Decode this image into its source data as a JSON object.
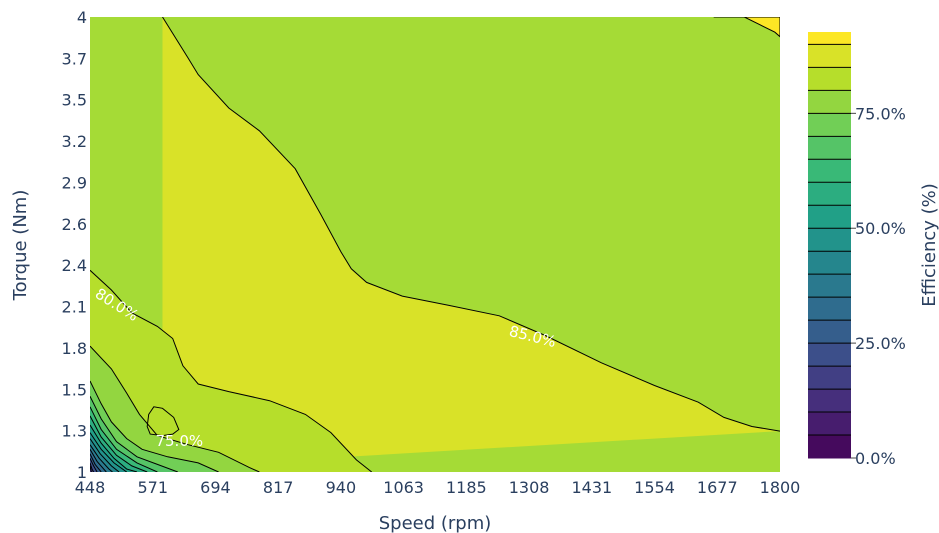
{
  "chart_data": {
    "type": "contour",
    "xlabel": "Speed (rpm)",
    "ylabel": "Torque (Nm)",
    "colorbar_title": "Efficiency (%)",
    "x_ticks": [
      "448",
      "571",
      "694",
      "817",
      "940",
      "1063",
      "1185",
      "1308",
      "1431",
      "1554",
      "1677",
      "1800"
    ],
    "y_ticks": [
      "1",
      "1.3",
      "1.5",
      "1.8",
      "2.1",
      "2.4",
      "2.6",
      "2.9",
      "3.2",
      "3.5",
      "3.7",
      "4"
    ],
    "xlim": [
      448,
      1800
    ],
    "ylim": [
      1,
      4
    ],
    "colorbar_ticks": [
      "0.0%",
      "25.0%",
      "50.0%",
      "75.0%"
    ],
    "colorscale": "viridis",
    "contour_step": 5,
    "contour_labels": [
      {
        "text": "80.0%",
        "x": 500,
        "y": 2.1
      },
      {
        "text": "85.0%",
        "x": 1315,
        "y": 1.89
      },
      {
        "text": "75.0%",
        "x": 623,
        "y": 1.2
      }
    ],
    "contours": [
      {
        "level": 95,
        "points": [
          [
            1670,
            4.0
          ],
          [
            1725,
            4.0
          ],
          [
            1800,
            4.0
          ],
          [
            1800,
            3.87
          ],
          [
            1790,
            3.9
          ],
          [
            1760,
            3.95
          ],
          [
            1730,
            4.0
          ]
        ],
        "closed": true
      },
      {
        "level": 90,
        "points": [
          [
            590,
            4.0
          ],
          [
            640,
            3.73
          ],
          [
            660,
            3.62
          ],
          [
            720,
            3.4
          ],
          [
            780,
            3.25
          ],
          [
            850,
            3.0
          ],
          [
            900,
            2.7
          ],
          [
            940,
            2.45
          ],
          [
            960,
            2.34
          ],
          [
            990,
            2.25
          ],
          [
            1060,
            2.16
          ],
          [
            1150,
            2.1
          ],
          [
            1250,
            2.03
          ],
          [
            1340,
            1.9
          ],
          [
            1450,
            1.72
          ],
          [
            1554,
            1.57
          ],
          [
            1640,
            1.46
          ],
          [
            1690,
            1.36
          ],
          [
            1745,
            1.3
          ],
          [
            1800,
            1.27
          ]
        ],
        "closed": false
      },
      {
        "level": 85,
        "points": [
          [
            448,
            2.33
          ],
          [
            490,
            2.2
          ],
          [
            530,
            2.05
          ],
          [
            580,
            1.96
          ],
          [
            610,
            1.88
          ],
          [
            620,
            1.79
          ],
          [
            630,
            1.7
          ],
          [
            660,
            1.58
          ],
          [
            720,
            1.53
          ],
          [
            800,
            1.47
          ],
          [
            870,
            1.38
          ],
          [
            920,
            1.26
          ],
          [
            970,
            1.08
          ],
          [
            1000,
            1.0
          ]
        ],
        "closed": false
      },
      {
        "level": 80,
        "points": [
          [
            448,
            1.83
          ],
          [
            490,
            1.68
          ],
          [
            520,
            1.52
          ],
          [
            545,
            1.38
          ],
          [
            580,
            1.24
          ],
          [
            640,
            1.18
          ],
          [
            700,
            1.13
          ],
          [
            760,
            1.03
          ],
          [
            780,
            1.0
          ]
        ],
        "closed": false
      },
      {
        "level": 80,
        "points": [
          [
            560,
            1.3
          ],
          [
            563,
            1.38
          ],
          [
            573,
            1.43
          ],
          [
            590,
            1.42
          ],
          [
            612,
            1.36
          ],
          [
            622,
            1.28
          ],
          [
            610,
            1.25
          ],
          [
            590,
            1.24
          ],
          [
            566,
            1.25
          ]
        ],
        "closed": true
      },
      {
        "level": 75,
        "points": [
          [
            448,
            1.6
          ],
          [
            470,
            1.45
          ],
          [
            490,
            1.33
          ],
          [
            520,
            1.22
          ],
          [
            550,
            1.15
          ],
          [
            600,
            1.1
          ],
          [
            660,
            1.06
          ],
          [
            700,
            1.0
          ]
        ],
        "closed": false
      },
      {
        "level": 70,
        "points": [
          [
            448,
            1.5
          ],
          [
            470,
            1.35
          ],
          [
            500,
            1.2
          ],
          [
            540,
            1.1
          ],
          [
            580,
            1.05
          ],
          [
            620,
            1.0
          ]
        ],
        "closed": false
      },
      {
        "level": 65,
        "points": [
          [
            448,
            1.43
          ],
          [
            470,
            1.28
          ],
          [
            500,
            1.15
          ],
          [
            540,
            1.06
          ],
          [
            580,
            1.0
          ]
        ],
        "closed": false
      },
      {
        "level": 60,
        "points": [
          [
            448,
            1.37
          ],
          [
            470,
            1.23
          ],
          [
            500,
            1.11
          ],
          [
            530,
            1.04
          ],
          [
            560,
            1.0
          ]
        ],
        "closed": false
      },
      {
        "level": 55,
        "points": [
          [
            448,
            1.31
          ],
          [
            470,
            1.19
          ],
          [
            495,
            1.09
          ],
          [
            520,
            1.02
          ],
          [
            540,
            1.0
          ]
        ],
        "closed": false
      },
      {
        "level": 50,
        "points": [
          [
            448,
            1.26
          ],
          [
            470,
            1.15
          ],
          [
            495,
            1.06
          ],
          [
            520,
            1.0
          ]
        ],
        "closed": false
      },
      {
        "level": 45,
        "points": [
          [
            448,
            1.22
          ],
          [
            468,
            1.12
          ],
          [
            490,
            1.04
          ],
          [
            505,
            1.0
          ]
        ],
        "closed": false
      },
      {
        "level": 40,
        "points": [
          [
            448,
            1.18
          ],
          [
            466,
            1.09
          ],
          [
            485,
            1.02
          ],
          [
            492,
            1.0
          ]
        ],
        "closed": false
      },
      {
        "level": 35,
        "points": [
          [
            448,
            1.15
          ],
          [
            462,
            1.07
          ],
          [
            480,
            1.0
          ]
        ],
        "closed": false
      },
      {
        "level": 30,
        "points": [
          [
            448,
            1.12
          ],
          [
            458,
            1.05
          ],
          [
            470,
            1.0
          ]
        ],
        "closed": false
      },
      {
        "level": 25,
        "points": [
          [
            448,
            1.09
          ],
          [
            455,
            1.04
          ],
          [
            462,
            1.0
          ]
        ],
        "closed": false
      },
      {
        "level": 20,
        "points": [
          [
            448,
            1.06
          ],
          [
            452,
            1.02
          ],
          [
            455,
            1.0
          ]
        ],
        "closed": false
      },
      {
        "level": 15,
        "points": [
          [
            448,
            1.04
          ],
          [
            450,
            1.01
          ],
          [
            451,
            1.0
          ]
        ],
        "closed": false
      }
    ]
  }
}
